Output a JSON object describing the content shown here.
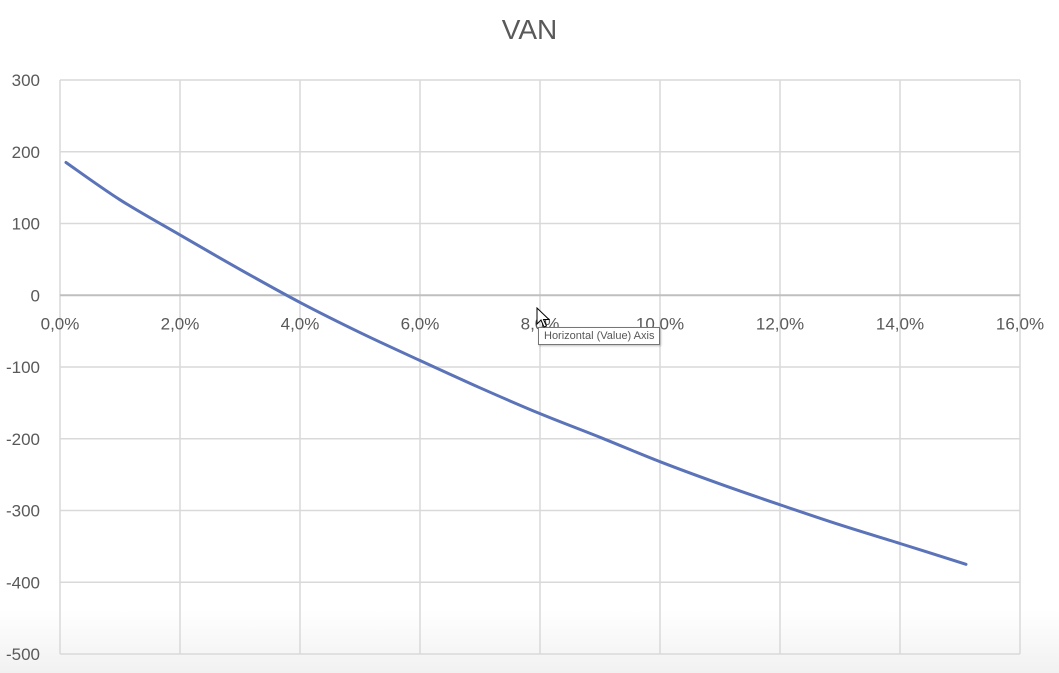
{
  "chart_data": {
    "type": "line",
    "title": "VAN",
    "xlabel": "",
    "ylabel": "",
    "xlim": [
      0,
      0.16
    ],
    "ylim": [
      -500,
      300
    ],
    "x_ticks": [
      0,
      0.02,
      0.04,
      0.06,
      0.08,
      0.1,
      0.12,
      0.14,
      0.16
    ],
    "x_tick_labels": [
      "0,0%",
      "2,0%",
      "4,0%",
      "6,0%",
      "8,0%",
      "10,0%",
      "12,0%",
      "14,0%",
      "16,0%"
    ],
    "y_ticks": [
      300,
      200,
      100,
      0,
      -100,
      -200,
      -300,
      -400,
      -500
    ],
    "y_tick_labels": [
      "300",
      "200",
      "100",
      "0",
      "-100",
      "-200",
      "-300",
      "-400",
      "-500"
    ],
    "grid": true,
    "line_color": "#5b73b8",
    "series": [
      {
        "x": [
          0.001,
          0.01,
          0.02,
          0.03,
          0.04,
          0.05,
          0.06,
          0.07,
          0.08,
          0.09,
          0.1,
          0.11,
          0.12,
          0.13,
          0.14,
          0.151
        ],
        "values": [
          185,
          133,
          84,
          36,
          -10,
          -52,
          -91,
          -129,
          -165,
          -198,
          -232,
          -263,
          -292,
          -320,
          -346,
          -375
        ]
      }
    ]
  },
  "tooltip": {
    "text": "Horizontal (Value) Axis"
  }
}
